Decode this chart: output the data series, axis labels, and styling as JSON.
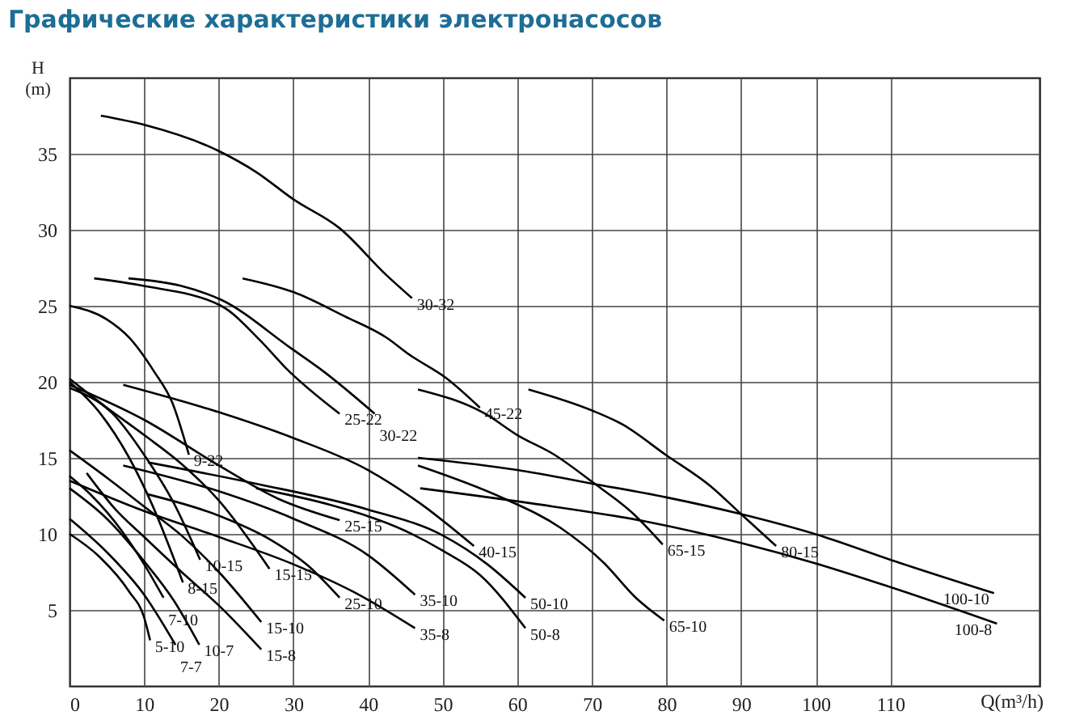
{
  "chart_data": {
    "type": "line",
    "title": "Графические характеристики электронасосов",
    "xlabel": "Q(m³/h)",
    "ylabel": "H (m)",
    "xlim": [
      0,
      130
    ],
    "ylim": [
      0,
      40
    ],
    "xticks": [
      0,
      10,
      20,
      30,
      40,
      50,
      60,
      70,
      80,
      90,
      100,
      110
    ],
    "yticks": [
      5,
      10,
      15,
      20,
      25,
      30,
      35
    ],
    "grid": true,
    "legend": false,
    "series": [
      {
        "name": "30-32",
        "color": "#000000",
        "x": [
          4.2,
          10,
          19.9,
          25,
          30,
          36.2,
          42.5,
          45.9
        ],
        "values": [
          37.5,
          36.9,
          35.2,
          33.8,
          32.0,
          30.1,
          27.0,
          25.5
        ]
      },
      {
        "name": "45-22",
        "color": "#000000",
        "x": [
          23.2,
          30,
          36.9,
          42.5,
          45.5,
          50.6,
          55
        ],
        "values": [
          26.8,
          25.9,
          24.3,
          22.9,
          21.8,
          20.2,
          18.3
        ]
      },
      {
        "name": "25-22",
        "color": "#000000",
        "x": [
          3.3,
          10,
          20.3,
          25.4,
          29,
          36.2
        ],
        "values": [
          26.8,
          26.3,
          25.0,
          22.8,
          20.9,
          17.9
        ]
      },
      {
        "name": "30-22",
        "color": "#000000",
        "x": [
          7.9,
          15,
          20.3,
          29.7,
          34,
          40.9
        ],
        "values": [
          26.8,
          26.3,
          25.4,
          22.2,
          20.7,
          17.9
        ]
      },
      {
        "name": "9-22",
        "color": "#000000",
        "x": [
          0,
          5,
          8,
          11.3,
          13.8,
          16
        ],
        "values": [
          25,
          24.1,
          22.9,
          20.7,
          18.6,
          15.2
        ]
      },
      {
        "name": "40-15",
        "color": "#000000",
        "x": [
          7.2,
          20,
          30,
          40,
          47,
          54.2
        ],
        "values": [
          19.8,
          18.0,
          16.3,
          14.2,
          12.0,
          9.2
        ]
      },
      {
        "name": "25-15",
        "color": "#000000",
        "x": [
          0,
          10,
          20,
          28,
          36.2
        ],
        "values": [
          19.8,
          17.5,
          14.5,
          12.3,
          10.9
        ]
      },
      {
        "name": "8-15",
        "color": "#000000",
        "x": [
          0,
          4,
          8,
          11,
          15.2
        ],
        "values": [
          20,
          18,
          15,
          12,
          6.8
        ]
      },
      {
        "name": "10-15",
        "color": "#000000",
        "x": [
          0,
          6,
          10,
          14,
          17.5
        ],
        "values": [
          19.6,
          17.8,
          15.2,
          12,
          8.3
        ]
      },
      {
        "name": "15-15",
        "color": "#000000",
        "x": [
          0,
          5,
          10,
          15,
          20,
          26.8
        ],
        "values": [
          20.2,
          18.3,
          16.5,
          14.6,
          12.2,
          7.7
        ]
      },
      {
        "name": "7-10",
        "color": "#000000",
        "x": [
          0,
          3,
          7,
          10,
          12.6
        ],
        "values": [
          13.8,
          12.5,
          10.2,
          8,
          5.8
        ]
      },
      {
        "name": "10-7",
        "color": "#000000",
        "x": [
          0,
          5,
          10,
          14,
          17.4
        ],
        "values": [
          13.0,
          11,
          8.2,
          5.6,
          2.7
        ]
      },
      {
        "name": "7-7",
        "color": "#000000",
        "x": [
          0,
          5,
          10,
          14.2
        ],
        "values": [
          11,
          8.8,
          6.0,
          2.7
        ]
      },
      {
        "name": "5-10",
        "color": "#000000",
        "x": [
          0,
          4,
          8,
          10,
          10.8
        ],
        "values": [
          10,
          8.5,
          6.2,
          4.5,
          3.0
        ]
      },
      {
        "name": "15-10",
        "color": "#000000",
        "x": [
          0,
          5,
          10,
          15,
          20,
          25.7
        ],
        "values": [
          15.5,
          13.7,
          11.8,
          9.9,
          7.5,
          4.2
        ]
      },
      {
        "name": "15-8",
        "color": "#000000",
        "x": [
          2.3,
          6,
          10,
          15,
          20,
          25.7
        ],
        "values": [
          14,
          11.7,
          9.8,
          7.5,
          5.3,
          2.4
        ]
      },
      {
        "name": "25-10",
        "color": "#000000",
        "x": [
          10.5,
          20,
          27,
          32,
          36.2
        ],
        "values": [
          12.6,
          11.2,
          9.6,
          7.9,
          5.8
        ]
      },
      {
        "name": "35-10",
        "color": "#000000",
        "x": [
          7.2,
          20,
          30,
          40,
          46.3
        ],
        "values": [
          14.5,
          12.8,
          11,
          8.6,
          6.0
        ]
      },
      {
        "name": "35-8",
        "color": "#000000",
        "x": [
          0,
          10,
          20,
          30,
          38,
          46.3
        ],
        "values": [
          13.5,
          11.5,
          9.8,
          8,
          6.2,
          3.8
        ]
      },
      {
        "name": "50-10",
        "color": "#000000",
        "x": [
          10.5,
          25,
          40,
          50,
          56,
          61.1
        ],
        "values": [
          14.7,
          13.3,
          11.6,
          9.9,
          8,
          5.8
        ]
      },
      {
        "name": "50-8",
        "color": "#000000",
        "x": [
          25,
          35,
          45,
          50,
          55,
          61.1
        ],
        "values": [
          13.0,
          11.9,
          10.2,
          8.9,
          7.3,
          3.8
        ]
      },
      {
        "name": "65-15",
        "color": "#000000",
        "x": [
          46.7,
          55.7,
          60,
          65,
          70.1,
          75.6,
          79.5
        ],
        "values": [
          19.5,
          17.9,
          16.5,
          15.2,
          13.4,
          11.3,
          9.3
        ]
      },
      {
        "name": "80-15",
        "color": "#000000",
        "x": [
          61.5,
          70.1,
          74.1,
          79.9,
          86,
          90,
          94.7
        ],
        "values": [
          19.5,
          18.1,
          17.2,
          15.2,
          13.1,
          11.3,
          9.2
        ]
      },
      {
        "name": "100-10",
        "color": "#000000",
        "x": [
          46.7,
          60,
          70.1,
          80,
          90,
          100.5,
          110,
          123.9
        ],
        "values": [
          15.0,
          14.2,
          13.3,
          12.4,
          11.3,
          9.9,
          8.3,
          6.1
        ]
      },
      {
        "name": "100-8",
        "color": "#000000",
        "x": [
          47,
          62,
          77.4,
          90,
          99.7,
          110,
          124.3
        ],
        "values": [
          13.0,
          12.0,
          10.8,
          9.4,
          8.1,
          6.5,
          4.1
        ]
      },
      {
        "name": "65-10",
        "color": "#000000",
        "x": [
          46.7,
          57.9,
          65.8,
          71.6,
          75.9,
          79.7
        ],
        "values": [
          14.5,
          12.4,
          10.4,
          8.1,
          5.8,
          4.3
        ]
      }
    ]
  }
}
